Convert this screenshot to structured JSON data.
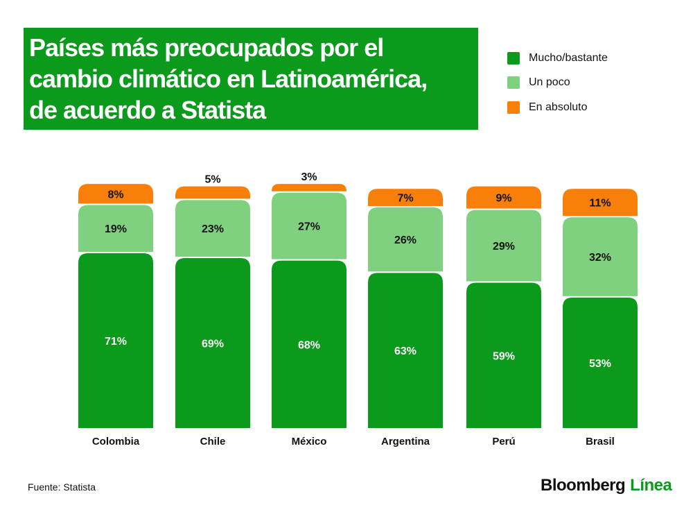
{
  "title_lines": [
    "Países más preocupados por el",
    "cambio climático en Latinoamérica,",
    "de acuerdo a Statista"
  ],
  "legend": [
    {
      "label": "Mucho/bastante",
      "color": "#0b9a1c"
    },
    {
      "label": "Un poco",
      "color": "#7fd07f"
    },
    {
      "label": "En absoluto",
      "color": "#f77f0a"
    }
  ],
  "chart_data": {
    "type": "bar",
    "stacked": true,
    "categories": [
      "Colombia",
      "Chile",
      "México",
      "Argentina",
      "Perú",
      "Brasil"
    ],
    "series": [
      {
        "name": "Mucho/bastante",
        "color": "#0b9a1c",
        "values": [
          71,
          69,
          68,
          63,
          59,
          53
        ],
        "labels": [
          "71%",
          "69%",
          "68%",
          "63%",
          "59%",
          "53%"
        ]
      },
      {
        "name": "Un poco",
        "color": "#7fd07f",
        "values": [
          19,
          23,
          27,
          26,
          29,
          32
        ],
        "labels": [
          "19%",
          "23%",
          "27%",
          "26%",
          "29%",
          "32%"
        ]
      },
      {
        "name": "En absoluto",
        "color": "#f77f0a",
        "values": [
          8,
          5,
          3,
          7,
          9,
          11
        ],
        "labels": [
          "8%",
          "5%",
          "3%",
          "7%",
          "9%",
          "11%"
        ]
      }
    ],
    "unit": "%",
    "grid": false,
    "legend_position": "top-right"
  },
  "source": "Fuente: Statista",
  "brand": {
    "name": "Bloomberg",
    "suffix": "Línea"
  }
}
